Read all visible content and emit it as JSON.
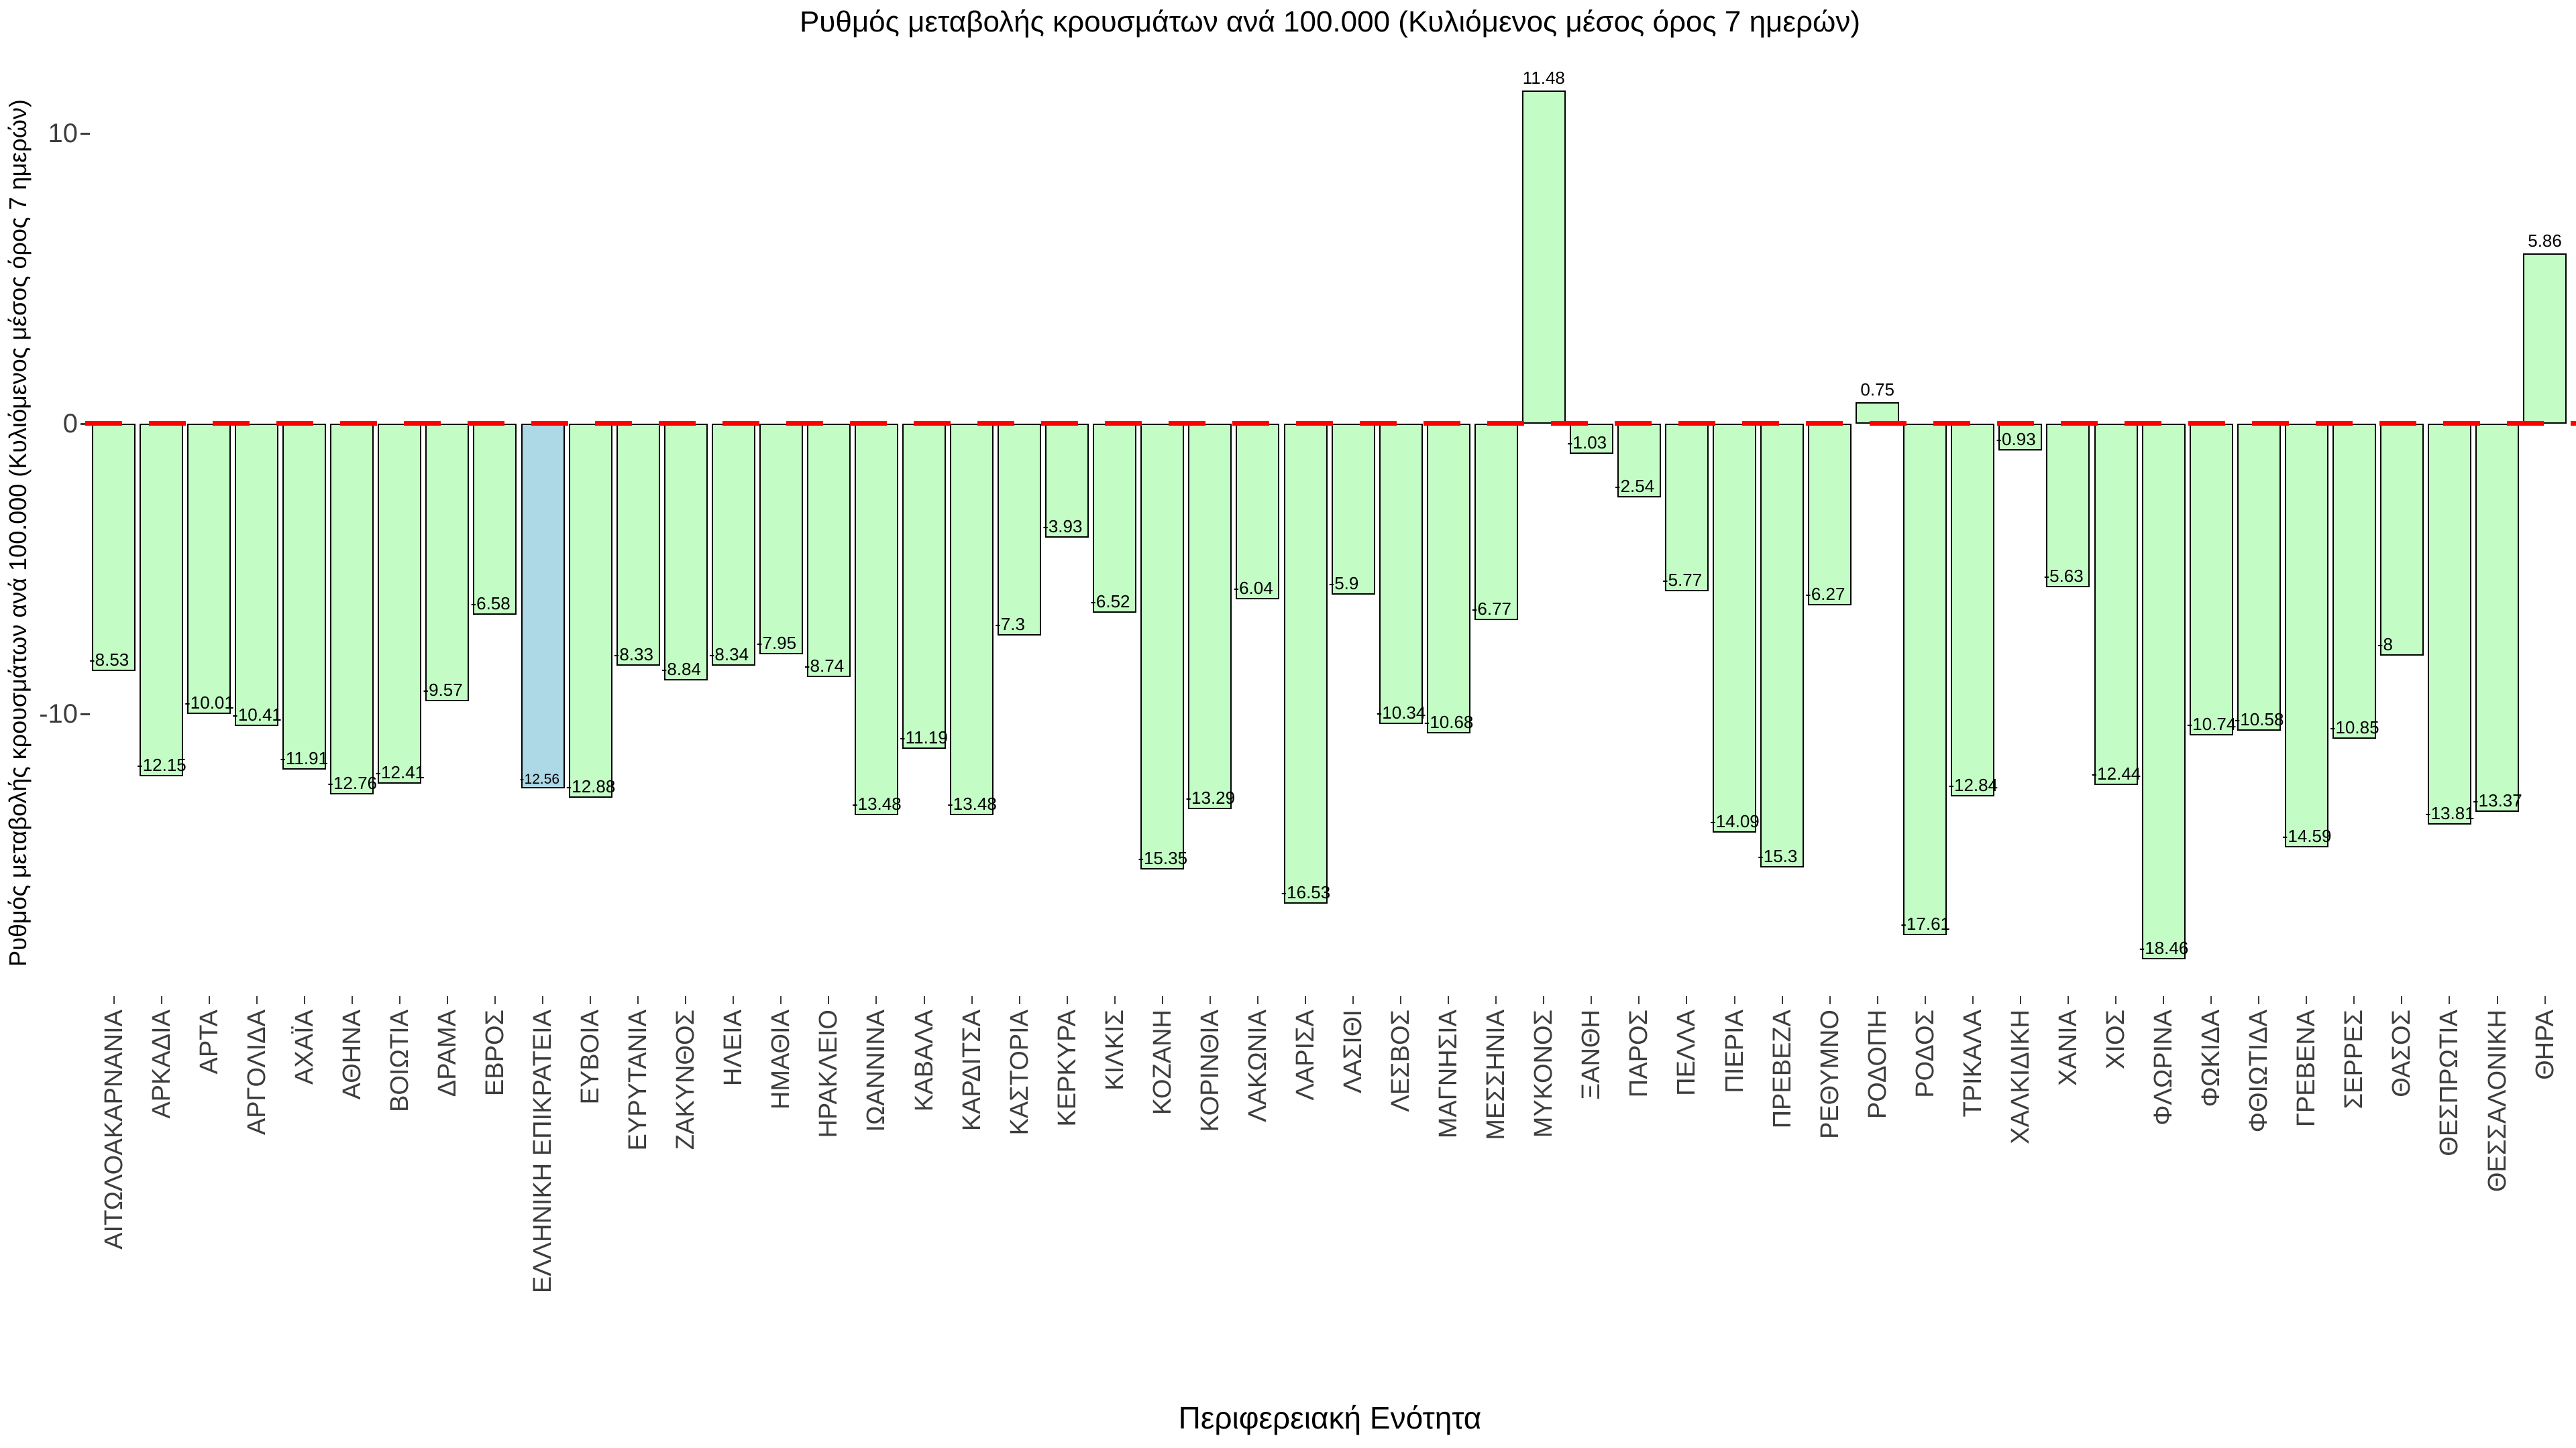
{
  "chart_data": {
    "type": "bar",
    "title": "Ρυθμός μεταβολής κρουσμάτων ανά 100.000 (Κυλιόμενος μέσος όρος 7 ημερών)",
    "xlabel": "Περιφερειακή Ενότητα",
    "ylabel": "Ρυθμός μεταβολής κρουσμάτων ανά 100.000 (Κυλιόμενος μέσος όρος 7 ημερών)",
    "yticks": [
      10,
      0,
      -10
    ],
    "ylim": [
      -19.4,
      12.5
    ],
    "grid": false,
    "legend": null,
    "zero_line": {
      "color": "#ff0000",
      "style": "dashed",
      "y": 0
    },
    "bar_fill_default": "#c3fcc4",
    "bar_fill_highlight": "#add8e6",
    "bar_border_color": "#000000",
    "highlight_category": "ΕΛΛΗΝΙΚΗ ΕΠΙΚΡΑΤΕΙΑ",
    "tick_label_color": "#3d3d3d",
    "text_color": "#000000",
    "categories": [
      "ΑΙΤΩΛΟΑΚΑΡΝΑΝΙΑ",
      "ΑΡΚΑΔΙΑ",
      "ΑΡΤΑ",
      "ΑΡΓΟΛΙΔΑ",
      "ΑΧΑΪΑ",
      "ΑΘΗΝΑ",
      "ΒΟΙΩΤΙΑ",
      "ΔΡΑΜΑ",
      "ΕΒΡΟΣ",
      "ΕΛΛΗΝΙΚΗ ΕΠΙΚΡΑΤΕΙΑ",
      "ΕΥΒΟΙΑ",
      "ΕΥΡΥΤΑΝΙΑ",
      "ΖΑΚΥΝΘΟΣ",
      "ΗΛΕΙΑ",
      "ΗΜΑΘΙΑ",
      "ΗΡΑΚΛΕΙΟ",
      "ΙΩΑΝΝΙΝΑ",
      "ΚΑΒΑΛΑ",
      "ΚΑΡΔΙΤΣΑ",
      "ΚΑΣΤΟΡΙΑ",
      "ΚΕΡΚΥΡΑ",
      "ΚΙΛΚΙΣ",
      "ΚΟΖΑΝΗ",
      "ΚΟΡΙΝΘΙΑ",
      "ΛΑΚΩΝΙΑ",
      "ΛΑΡΙΣΑ",
      "ΛΑΣΙΘΙ",
      "ΛΕΣΒΟΣ",
      "ΜΑΓΝΗΣΙΑ",
      "ΜΕΣΣΗΝΙΑ",
      "ΜΥΚΟΝΟΣ",
      "ΞΑΝΘΗ",
      "ΠΑΡΟΣ",
      "ΠΕΛΛΑ",
      "ΠΙΕΡΙΑ",
      "ΠΡΕΒΕΖΑ",
      "ΡΕΘΥΜΝΟ",
      "ΡΟΔΟΠΗ",
      "ΡΟΔΟΣ",
      "ΤΡΙΚΑΛΑ",
      "ΧΑΛΚΙΔΙΚΗ",
      "ΧΑΝΙΑ",
      "ΧΙΟΣ",
      "ΦΛΩΡΙΝΑ",
      "ΦΩΚΙΔΑ",
      "ΦΘΙΩΤΙΔΑ",
      "ΓΡΕΒΕΝΑ",
      "ΣΕΡΡΕΣ",
      "ΘΑΣΟΣ",
      "ΘΕΣΠΡΩΤΙΑ",
      "ΘΕΣΣΑΛΟΝΙΚΗ",
      "ΘΗΡΑ"
    ],
    "values": [
      -8.53,
      -12.15,
      -10.01,
      -10.41,
      -11.91,
      -12.76,
      -12.41,
      -9.57,
      -6.58,
      -12.56,
      -12.88,
      -8.33,
      -8.84,
      -8.34,
      -7.95,
      -8.74,
      -13.48,
      -11.19,
      -13.48,
      -7.3,
      -3.93,
      -6.52,
      -15.35,
      -13.29,
      -6.04,
      -16.53,
      -5.9,
      -10.34,
      -10.68,
      -6.77,
      11.48,
      -1.03,
      -2.54,
      -5.77,
      -14.09,
      -15.3,
      -6.27,
      0.75,
      -17.61,
      -12.84,
      -0.93,
      -5.63,
      -12.44,
      -18.46,
      -10.74,
      -10.58,
      -14.59,
      -10.85,
      -8,
      -13.81,
      -13.37,
      5.86
    ]
  }
}
